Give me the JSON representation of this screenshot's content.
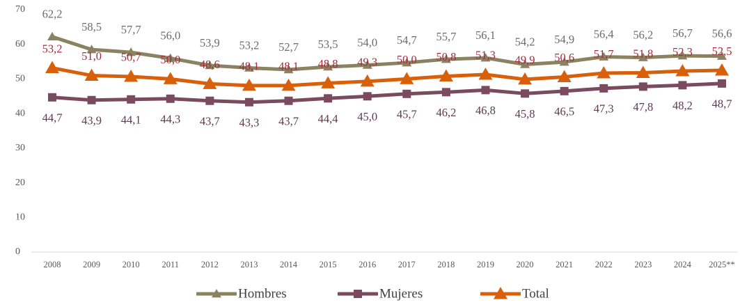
{
  "chart_data": {
    "type": "line",
    "categories": [
      "2008",
      "2009",
      "2010",
      "2011",
      "2012",
      "2013",
      "2014",
      "2015",
      "2016",
      "2017",
      "2018",
      "2019",
      "2020",
      "2021",
      "2022",
      "2023",
      "2024",
      "2025**"
    ],
    "ylim": [
      0,
      70
    ],
    "yticks": [
      0,
      10,
      20,
      30,
      40,
      50,
      60,
      70
    ],
    "grid": false,
    "legend": "bottom",
    "series": [
      {
        "name": "Hombres",
        "color": "#8b8262",
        "label_color": "#6b6b6b",
        "marker": "triangle",
        "values": [
          62.2,
          58.5,
          57.7,
          56.0,
          53.9,
          53.2,
          52.7,
          53.5,
          54.0,
          54.7,
          55.7,
          56.1,
          54.2,
          54.9,
          56.4,
          56.2,
          56.7,
          56.6
        ],
        "value_labels": [
          "62,2",
          "58,5",
          "57,7",
          "56,0",
          "53,9",
          "53,2",
          "52,7",
          "53,5",
          "54,0",
          "54,7",
          "55,7",
          "56,1",
          "54,2",
          "54,9",
          "56,4",
          "56,2",
          "56,7",
          "56,6"
        ]
      },
      {
        "name": "Mujeres",
        "color": "#7a4a5f",
        "label_color": "#5e3a4b",
        "marker": "square",
        "values": [
          44.7,
          43.9,
          44.1,
          44.3,
          43.7,
          43.3,
          43.7,
          44.4,
          45.0,
          45.7,
          46.2,
          46.8,
          45.8,
          46.5,
          47.3,
          47.8,
          48.2,
          48.7
        ],
        "value_labels": [
          "44,7",
          "43,9",
          "44,1",
          "44,3",
          "43,7",
          "43,3",
          "43,7",
          "44,4",
          "45,0",
          "45,7",
          "46,2",
          "46,8",
          "45,8",
          "46,5",
          "47,3",
          "47,8",
          "48,2",
          "48,7"
        ]
      },
      {
        "name": "Total",
        "color": "#d9600b",
        "label_color": "#a32a3a",
        "marker": "triangle-large",
        "values": [
          53.2,
          51.0,
          50.7,
          50.0,
          48.6,
          48.1,
          48.1,
          48.8,
          49.3,
          50.0,
          50.8,
          51.3,
          49.9,
          50.6,
          51.7,
          51.8,
          52.3,
          52.5
        ],
        "value_labels": [
          "53,2",
          "51,0",
          "50,7",
          "50,0",
          "48,6",
          "48,1",
          "48,1",
          "48,8",
          "49,3",
          "50,0",
          "50,8",
          "51,3",
          "49,9",
          "50,6",
          "51,7",
          "51,8",
          "52,3",
          "52,5"
        ]
      }
    ]
  }
}
